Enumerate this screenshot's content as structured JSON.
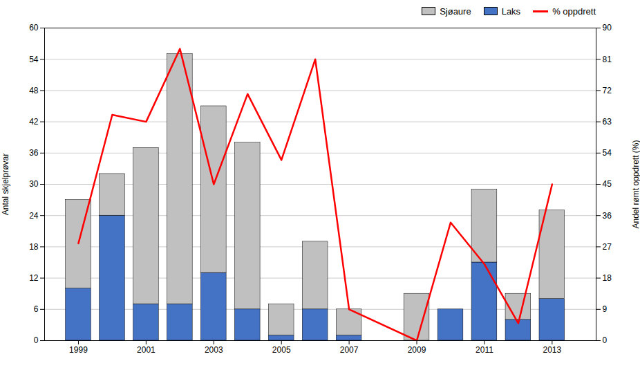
{
  "chart_data": {
    "type": "bar",
    "stacked": true,
    "x": [
      1999,
      2000,
      2001,
      2002,
      2003,
      2004,
      2005,
      2006,
      2007,
      2009,
      2010,
      2011,
      2012,
      2013
    ],
    "xlim": [
      1998.0,
      2014.3
    ],
    "xticks": [
      1999,
      2001,
      2003,
      2005,
      2007,
      2009,
      2011,
      2013
    ],
    "ylim": [
      0,
      60
    ],
    "yticks": [
      0,
      6,
      12,
      18,
      24,
      30,
      36,
      42,
      48,
      54,
      60
    ],
    "y2lim": [
      0,
      90
    ],
    "y2ticks": [
      0,
      9,
      18,
      27,
      36,
      45,
      54,
      63,
      72,
      81,
      90
    ],
    "ylabel": "Antal skjelprøvar",
    "y2label": "Andel rømt oppdrett (%)",
    "grid": true,
    "legend": "upper right",
    "series": [
      {
        "name": "Laks",
        "color": "#4472C4",
        "values": [
          10,
          24,
          7,
          7,
          13,
          6,
          1,
          6,
          1,
          0,
          6,
          15,
          4,
          8
        ]
      },
      {
        "name": "Sjøaure",
        "color": "#C0C0C0",
        "values": [
          17,
          8,
          30,
          48,
          32,
          32,
          6,
          13,
          5,
          9,
          0,
          14,
          5,
          17
        ]
      },
      {
        "name": "% oppdrett",
        "type": "line",
        "axis": "y2",
        "color": "#FF0000",
        "values": [
          28,
          65,
          63,
          84,
          45,
          71,
          52,
          81,
          9,
          0,
          34,
          22,
          5,
          45
        ]
      }
    ]
  }
}
